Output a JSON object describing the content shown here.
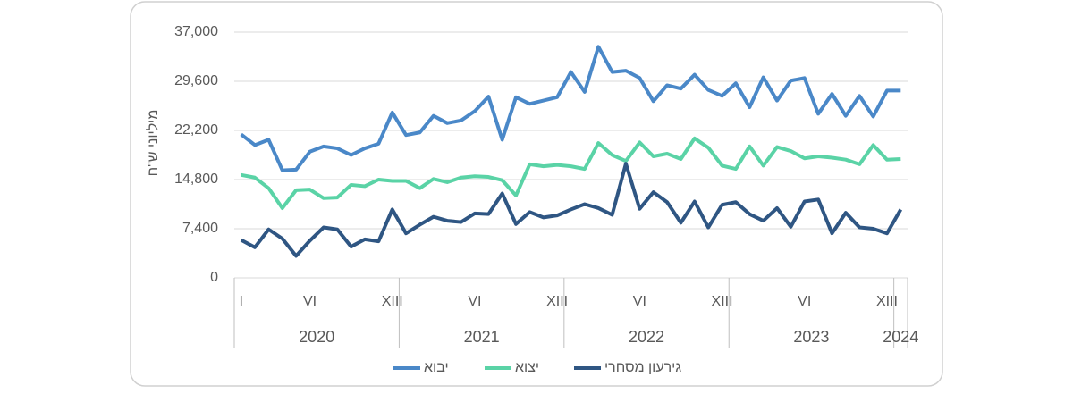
{
  "chart_data": {
    "type": "line",
    "y_label": "מיליוני ש\"ח",
    "categories": [
      "I",
      null,
      null,
      null,
      null,
      "VI",
      null,
      null,
      null,
      null,
      null,
      "XIII",
      null,
      null,
      null,
      null,
      null,
      "VI",
      null,
      null,
      null,
      null,
      null,
      "XIII",
      null,
      null,
      null,
      null,
      null,
      "VI",
      null,
      null,
      null,
      null,
      null,
      "XIII",
      null,
      null,
      null,
      null,
      null,
      "VI",
      null,
      null,
      null,
      null,
      null,
      "XIII",
      null
    ],
    "groups": [
      {
        "name": "2020",
        "from": 0,
        "to": 11
      },
      {
        "name": "2021",
        "from": 12,
        "to": 23
      },
      {
        "name": "2022",
        "from": 24,
        "to": 35
      },
      {
        "name": "2023",
        "from": 36,
        "to": 47
      },
      {
        "name": "2024",
        "from": 48,
        "to": 48
      }
    ],
    "series": [
      {
        "name": "יבוא",
        "color": "#4a88c8",
        "values": [
          21600,
          20000,
          20800,
          16200,
          16300,
          19000,
          19800,
          19500,
          18500,
          19500,
          20200,
          24900,
          21500,
          21900,
          24400,
          23300,
          23700,
          25100,
          27300,
          20800,
          27200,
          26200,
          26700,
          27200,
          31000,
          28000,
          34800,
          31000,
          31200,
          30100,
          26600,
          29000,
          28500,
          30600,
          28300,
          27400,
          29300,
          25700,
          30200,
          26700,
          29700,
          30100,
          24700,
          27700,
          24400,
          27400,
          24300,
          28200,
          28200
        ]
      },
      {
        "name": "יצוא",
        "color": "#5ad3a6",
        "values": [
          15500,
          15100,
          13500,
          10500,
          13200,
          13300,
          12000,
          12100,
          14000,
          13800,
          14800,
          14600,
          14600,
          13500,
          14900,
          14400,
          15100,
          15300,
          15200,
          14700,
          12400,
          17100,
          16800,
          17000,
          16800,
          16400,
          20300,
          18500,
          17600,
          20400,
          18300,
          18700,
          17900,
          21000,
          19600,
          16900,
          16400,
          19800,
          16900,
          19700,
          19100,
          18000,
          18300,
          18100,
          17800,
          17100,
          20000,
          17800,
          17900
        ]
      },
      {
        "name": "גירעון מסחרי",
        "color": "#2f5683",
        "values": [
          5700,
          4600,
          7300,
          5900,
          3300,
          5600,
          7600,
          7300,
          4700,
          5800,
          5500,
          10300,
          6700,
          8000,
          9200,
          8600,
          8400,
          9700,
          9600,
          12700,
          8100,
          9900,
          9100,
          9400,
          10300,
          11100,
          10500,
          9500,
          17200,
          10400,
          12900,
          11400,
          8300,
          11500,
          7600,
          11000,
          11400,
          9600,
          8600,
          10500,
          7700,
          11500,
          11800,
          6700,
          9800,
          7600,
          7400,
          6700,
          10300
        ]
      }
    ],
    "ylim": [
      0,
      37000
    ],
    "yticks": [
      0,
      {
        "value": 7400,
        "label": "7,400"
      },
      {
        "value": 14800,
        "label": "14,800"
      },
      {
        "value": 22200,
        "label": "22,200"
      },
      {
        "value": 29600,
        "label": "29,600"
      },
      {
        "value": 37000,
        "label": "37,000"
      }
    ],
    "grid": true,
    "legend": "bottom"
  }
}
